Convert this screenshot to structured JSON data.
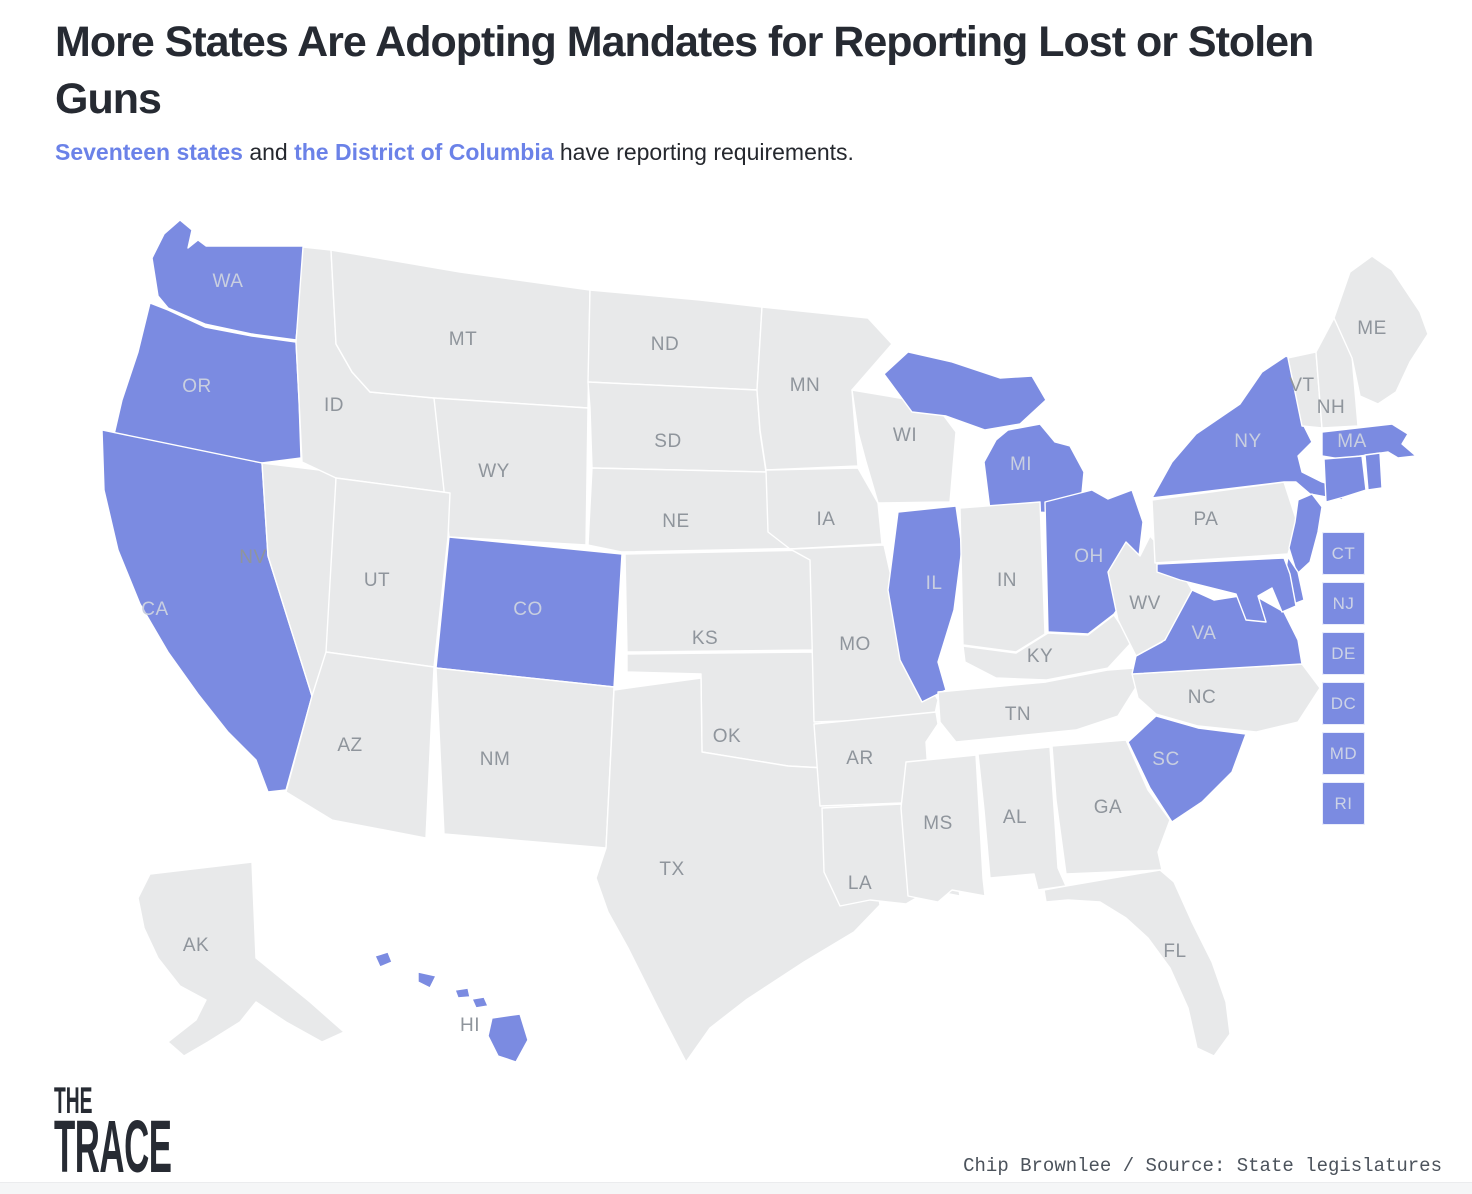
{
  "title": "More States Are Adopting Mandates for Reporting Lost or Stolen Guns",
  "subtitle": {
    "link_states": "Seventeen states",
    "conj": " and ",
    "link_dc": "the District of Columbia",
    "rest": " have reporting requirements."
  },
  "map": {
    "base_color": "#e8e9ea",
    "highlight_color": "#7b8be1",
    "border_color": "#ffffff",
    "label_color_base": "#8f959c",
    "label_color_highlight": "#c9cfe0",
    "highlighted": [
      "WA",
      "OR",
      "CA",
      "CO",
      "IL",
      "MI",
      "OH",
      "NY",
      "MA",
      "CT",
      "RI",
      "NJ",
      "DE",
      "DC",
      "MD",
      "VA",
      "SC",
      "HI"
    ],
    "states": [
      {
        "id": "WA",
        "label": "WA"
      },
      {
        "id": "OR",
        "label": "OR"
      },
      {
        "id": "CA",
        "label": "CA"
      },
      {
        "id": "NV",
        "label": "NV"
      },
      {
        "id": "ID",
        "label": "ID"
      },
      {
        "id": "MT",
        "label": "MT"
      },
      {
        "id": "WY",
        "label": "WY"
      },
      {
        "id": "UT",
        "label": "UT"
      },
      {
        "id": "CO",
        "label": "CO"
      },
      {
        "id": "AZ",
        "label": "AZ"
      },
      {
        "id": "NM",
        "label": "NM"
      },
      {
        "id": "ND",
        "label": "ND"
      },
      {
        "id": "SD",
        "label": "SD"
      },
      {
        "id": "NE",
        "label": "NE"
      },
      {
        "id": "KS",
        "label": "KS"
      },
      {
        "id": "OK",
        "label": "OK"
      },
      {
        "id": "TX",
        "label": "TX"
      },
      {
        "id": "MN",
        "label": "MN"
      },
      {
        "id": "IA",
        "label": "IA"
      },
      {
        "id": "MO",
        "label": "MO"
      },
      {
        "id": "AR",
        "label": "AR"
      },
      {
        "id": "LA",
        "label": "LA"
      },
      {
        "id": "WI",
        "label": "WI"
      },
      {
        "id": "MI",
        "label": "MI"
      },
      {
        "id": "IL",
        "label": "IL"
      },
      {
        "id": "IN",
        "label": "IN"
      },
      {
        "id": "OH",
        "label": "OH"
      },
      {
        "id": "KY",
        "label": "KY"
      },
      {
        "id": "TN",
        "label": "TN"
      },
      {
        "id": "MS",
        "label": "MS"
      },
      {
        "id": "AL",
        "label": "AL"
      },
      {
        "id": "GA",
        "label": "GA"
      },
      {
        "id": "FL",
        "label": "FL"
      },
      {
        "id": "SC",
        "label": "SC"
      },
      {
        "id": "NC",
        "label": "NC"
      },
      {
        "id": "VA",
        "label": "VA"
      },
      {
        "id": "WV",
        "label": "WV"
      },
      {
        "id": "PA",
        "label": "PA"
      },
      {
        "id": "NY",
        "label": "NY"
      },
      {
        "id": "VT",
        "label": "VT"
      },
      {
        "id": "NH",
        "label": "NH"
      },
      {
        "id": "ME",
        "label": "ME"
      },
      {
        "id": "MA",
        "label": "MA"
      },
      {
        "id": "CT",
        "label": ""
      },
      {
        "id": "RI",
        "label": ""
      },
      {
        "id": "NJ",
        "label": ""
      },
      {
        "id": "DE",
        "label": ""
      },
      {
        "id": "MD",
        "label": ""
      },
      {
        "id": "AK",
        "label": "AK"
      },
      {
        "id": "HI",
        "label": "HI"
      }
    ],
    "side_boxes": [
      "CT",
      "NJ",
      "DE",
      "DC",
      "MD",
      "RI"
    ]
  },
  "logo": {
    "line1": "THE",
    "line2": "TRACE"
  },
  "credit": "Chip Brownlee / Source: State legislatures"
}
